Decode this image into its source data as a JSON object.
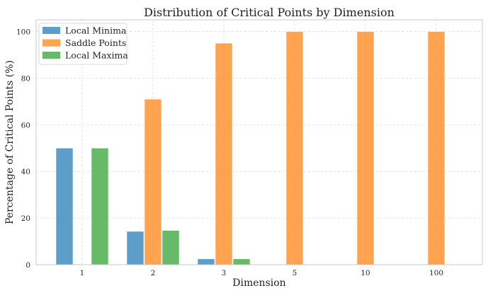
{
  "chart_data": {
    "type": "bar",
    "title": "Distribution of Critical Points by Dimension",
    "xlabel": "Dimension",
    "ylabel": "Percentage of Critical Points (%)",
    "categories": [
      "1",
      "2",
      "3",
      "5",
      "10",
      "100"
    ],
    "ylim": [
      0,
      105
    ],
    "yticks": [
      0,
      20,
      40,
      60,
      80,
      100
    ],
    "grid": true,
    "legend_position": "top-left",
    "series": [
      {
        "name": "Local Minima",
        "color": "#1f77b4",
        "values": [
          50,
          14.3,
          2.5,
          0,
          0,
          0
        ]
      },
      {
        "name": "Saddle Points",
        "color": "#ff7f0e",
        "values": [
          0,
          71,
          95,
          100,
          100,
          100
        ]
      },
      {
        "name": "Local Maxima",
        "color": "#2ca02c",
        "values": [
          50,
          14.7,
          2.5,
          0,
          0,
          0
        ]
      }
    ]
  }
}
